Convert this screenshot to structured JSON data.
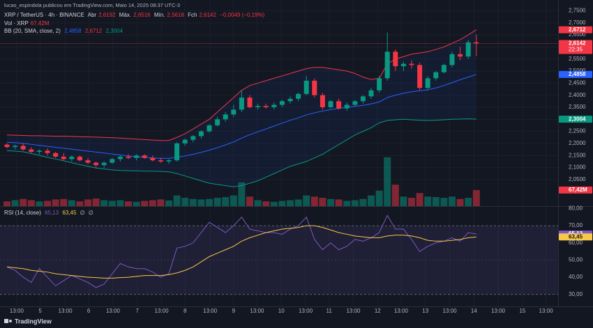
{
  "chart_data": {
    "type": "candlestick",
    "attribution": "lucas_espindola publicou em TradingView.com, Maio 14, 2025 08:37 UTC-3",
    "title": "XRP / TetherUS · 4h · BINANCE",
    "legend": {
      "open_name": "Abr",
      "open": "2,6192",
      "high_name": "Máx.",
      "high": "2,6516",
      "low_name": "Mín.",
      "low": "2,5618",
      "close_name": "Fch",
      "close": "2,6142",
      "change": "−0,0049 (−0,19%)"
    },
    "countdown": "22:35",
    "up_color": "#089981",
    "down_color": "#f23645",
    "open": [
      2.195,
      2.185,
      2.19,
      2.175,
      2.165,
      2.17,
      2.16,
      2.145,
      2.135,
      2.145,
      2.13,
      2.12,
      2.11,
      2.12,
      2.135,
      2.145,
      2.14,
      2.15,
      2.14,
      2.13,
      2.125,
      2.13,
      2.2,
      2.215,
      2.23,
      2.25,
      2.275,
      2.3,
      2.32,
      2.34,
      2.39,
      2.35,
      2.355,
      2.35,
      2.36,
      2.375,
      2.385,
      2.405,
      2.46,
      2.4,
      2.35,
      2.375,
      2.345,
      2.36,
      2.375,
      2.395,
      2.42,
      2.47,
      2.58,
      2.52,
      2.53,
      2.525,
      2.43,
      2.47,
      2.495,
      2.525,
      2.57,
      2.56,
      2.6192
    ],
    "high": [
      2.2,
      2.195,
      2.2,
      2.185,
      2.175,
      2.18,
      2.165,
      2.16,
      2.15,
      2.15,
      2.14,
      2.125,
      2.125,
      2.14,
      2.15,
      2.155,
      2.155,
      2.155,
      2.15,
      2.14,
      2.135,
      2.205,
      2.22,
      2.235,
      2.255,
      2.28,
      2.31,
      2.33,
      2.36,
      2.42,
      2.4,
      2.365,
      2.365,
      2.37,
      2.38,
      2.395,
      2.41,
      2.48,
      2.47,
      2.41,
      2.38,
      2.385,
      2.37,
      2.38,
      2.4,
      2.43,
      2.48,
      2.66,
      2.59,
      2.54,
      2.545,
      2.535,
      2.48,
      2.5,
      2.53,
      2.58,
      2.6,
      2.63,
      2.6516
    ],
    "low": [
      2.18,
      2.175,
      2.17,
      2.16,
      2.155,
      2.15,
      2.14,
      2.13,
      2.125,
      2.125,
      2.115,
      2.1,
      2.1,
      2.115,
      2.125,
      2.135,
      2.13,
      2.135,
      2.125,
      2.12,
      2.115,
      2.125,
      2.19,
      2.205,
      2.22,
      2.245,
      2.27,
      2.29,
      2.31,
      2.33,
      2.345,
      2.34,
      2.345,
      2.34,
      2.35,
      2.365,
      2.375,
      2.4,
      2.39,
      2.34,
      2.345,
      2.34,
      2.335,
      2.355,
      2.365,
      2.385,
      2.41,
      2.46,
      2.5,
      2.5,
      2.51,
      2.42,
      2.42,
      2.46,
      2.49,
      2.515,
      2.545,
      2.55,
      2.5618
    ],
    "close": [
      2.185,
      2.19,
      2.175,
      2.165,
      2.17,
      2.16,
      2.145,
      2.135,
      2.145,
      2.13,
      2.12,
      2.11,
      2.12,
      2.135,
      2.145,
      2.14,
      2.15,
      2.14,
      2.13,
      2.125,
      2.13,
      2.2,
      2.215,
      2.23,
      2.25,
      2.275,
      2.3,
      2.32,
      2.34,
      2.39,
      2.35,
      2.355,
      2.35,
      2.36,
      2.375,
      2.385,
      2.405,
      2.46,
      2.4,
      2.35,
      2.375,
      2.345,
      2.36,
      2.375,
      2.395,
      2.42,
      2.47,
      2.58,
      2.52,
      2.53,
      2.525,
      2.43,
      2.47,
      2.495,
      2.525,
      2.57,
      2.56,
      2.6192,
      2.6142
    ],
    "ylim": [
      1.94,
      2.78
    ],
    "yticks": [
      {
        "value": 2.75,
        "label": "2,7500"
      },
      {
        "value": 2.7,
        "label": "2,7000"
      },
      {
        "value": 2.65,
        "label": "2,6500"
      },
      {
        "value": 2.6,
        "label": "2,6000"
      },
      {
        "value": 2.55,
        "label": "2,5500"
      },
      {
        "value": 2.5,
        "label": "2,5000"
      },
      {
        "value": 2.45,
        "label": "2,4500"
      },
      {
        "value": 2.4,
        "label": "2,4000"
      },
      {
        "value": 2.35,
        "label": "2,3500"
      },
      {
        "value": 2.3,
        "label": "2,3000"
      },
      {
        "value": 2.25,
        "label": "2,2500"
      },
      {
        "value": 2.2,
        "label": "2,2000"
      },
      {
        "value": 2.15,
        "label": "2,1500"
      },
      {
        "value": 2.1,
        "label": "2,1000"
      },
      {
        "value": 2.05,
        "label": "2,0500"
      }
    ],
    "xticks": [
      {
        "value": 1.2,
        "label": "13:00"
      },
      {
        "value": 4.1,
        "label": "5"
      },
      {
        "value": 7.2,
        "label": "13:00"
      },
      {
        "value": 10.1,
        "label": "6"
      },
      {
        "value": 13.1,
        "label": "13:00"
      },
      {
        "value": 16.1,
        "label": "7"
      },
      {
        "value": 19.1,
        "label": "13:00"
      },
      {
        "value": 22.0,
        "label": "8"
      },
      {
        "value": 25.1,
        "label": "13:00"
      },
      {
        "value": 28.0,
        "label": "9"
      },
      {
        "value": 30.9,
        "label": "13:00"
      },
      {
        "value": 33.9,
        "label": "10"
      },
      {
        "value": 36.9,
        "label": "13:00"
      },
      {
        "value": 39.8,
        "label": "11"
      },
      {
        "value": 42.8,
        "label": "13:00"
      },
      {
        "value": 45.8,
        "label": "12"
      },
      {
        "value": 48.7,
        "label": "13:00"
      },
      {
        "value": 51.7,
        "label": "13"
      },
      {
        "value": 54.7,
        "label": "13:00"
      },
      {
        "value": 57.7,
        "label": "14"
      },
      {
        "value": 60.7,
        "label": "13:00"
      },
      {
        "value": 63.7,
        "label": "15"
      },
      {
        "value": 66.6,
        "label": "13:00"
      }
    ],
    "volume": {
      "name": "Vol · XRP",
      "label": "67,42M",
      "ylim": [
        0,
        850
      ],
      "up_color": "rgba(8,153,129,0.5)",
      "down_color": "rgba(242,54,69,0.5)",
      "values": [
        20,
        25,
        30,
        25,
        20,
        22,
        28,
        30,
        25,
        20,
        28,
        32,
        25,
        22,
        25,
        20,
        18,
        22,
        25,
        28,
        24,
        45,
        35,
        30,
        28,
        30,
        35,
        38,
        45,
        100,
        40,
        25,
        20,
        18,
        22,
        25,
        28,
        45,
        40,
        35,
        30,
        28,
        22,
        25,
        30,
        45,
        65,
        205,
        90,
        40,
        35,
        55,
        40,
        38,
        35,
        40,
        30,
        35,
        67.42
      ]
    },
    "bollinger": {
      "name": "BB (20, SMA, close, 2)",
      "fill": "rgba(41,98,255,0.07)",
      "series": [
        {
          "color": "#2962ff",
          "label": "2,4858",
          "values": [
            2.205,
            2.203,
            2.2,
            2.196,
            2.192,
            2.188,
            2.184,
            2.18,
            2.176,
            2.172,
            2.168,
            2.164,
            2.16,
            2.156,
            2.152,
            2.148,
            2.145,
            2.142,
            2.14,
            2.138,
            2.138,
            2.142,
            2.148,
            2.155,
            2.163,
            2.172,
            2.182,
            2.194,
            2.206,
            2.222,
            2.236,
            2.248,
            2.26,
            2.272,
            2.284,
            2.296,
            2.306,
            2.318,
            2.327,
            2.334,
            2.34,
            2.345,
            2.35,
            2.354,
            2.358,
            2.364,
            2.372,
            2.39,
            2.4,
            2.408,
            2.414,
            2.418,
            2.422,
            2.43,
            2.44,
            2.452,
            2.464,
            2.475,
            2.4858
          ]
        },
        {
          "color": "#f23645",
          "label": "2,6712",
          "values": [
            2.235,
            2.234,
            2.233,
            2.232,
            2.232,
            2.231,
            2.23,
            2.23,
            2.229,
            2.228,
            2.227,
            2.226,
            2.225,
            2.224,
            2.222,
            2.22,
            2.218,
            2.216,
            2.214,
            2.212,
            2.212,
            2.225,
            2.24,
            2.26,
            2.28,
            2.3,
            2.33,
            2.36,
            2.39,
            2.42,
            2.44,
            2.45,
            2.46,
            2.47,
            2.48,
            2.49,
            2.5,
            2.51,
            2.515,
            2.515,
            2.51,
            2.505,
            2.5,
            2.49,
            2.475,
            2.465,
            2.47,
            2.53,
            2.55,
            2.56,
            2.57,
            2.575,
            2.58,
            2.59,
            2.6,
            2.615,
            2.63,
            2.65,
            2.6712
          ]
        },
        {
          "color": "#089981",
          "label": "2,3004",
          "values": [
            2.17,
            2.168,
            2.165,
            2.158,
            2.15,
            2.142,
            2.135,
            2.128,
            2.12,
            2.112,
            2.105,
            2.098,
            2.094,
            2.09,
            2.088,
            2.087,
            2.086,
            2.085,
            2.085,
            2.084,
            2.082,
            2.075,
            2.065,
            2.055,
            2.045,
            2.035,
            2.03,
            2.025,
            2.02,
            2.025,
            2.035,
            2.045,
            2.06,
            2.075,
            2.09,
            2.105,
            2.115,
            2.125,
            2.14,
            2.155,
            2.175,
            2.195,
            2.215,
            2.235,
            2.25,
            2.265,
            2.285,
            2.295,
            2.298,
            2.3,
            2.298,
            2.296,
            2.295,
            2.296,
            2.298,
            2.3,
            2.301,
            2.302,
            2.3004
          ]
        }
      ]
    },
    "rsi": {
      "name": "RSI (14, close)",
      "nulls": [
        "∅",
        "∅"
      ],
      "ylim": [
        23,
        81
      ],
      "band": [
        30,
        70
      ],
      "band_color": "rgba(126,87,194,0.12)",
      "yticks": [
        {
          "value": 80,
          "label": "80,00"
        },
        {
          "value": 70,
          "label": "70,00"
        },
        {
          "value": 60,
          "label": "60,00"
        },
        {
          "value": 50,
          "label": "50,00"
        },
        {
          "value": 40,
          "label": "40,00"
        },
        {
          "value": 30,
          "label": "30,00"
        }
      ],
      "series": [
        {
          "color": "#7e57c2",
          "label": "65,13",
          "values": [
            46,
            44,
            40,
            37,
            45,
            40,
            35,
            38,
            41,
            39,
            37,
            34,
            36,
            42,
            48,
            46,
            45,
            45,
            43,
            40,
            42,
            57,
            58,
            60,
            66,
            72,
            69,
            66,
            70,
            75,
            68,
            67,
            66,
            66,
            65,
            68,
            70,
            75,
            62,
            56,
            60,
            56,
            58,
            62,
            61,
            63,
            66,
            76,
            68,
            68,
            62,
            55,
            58,
            60,
            61,
            63,
            61,
            66,
            65.13
          ]
        },
        {
          "color": "#f7c948",
          "label": "63,45",
          "values": [
            46,
            45.5,
            45,
            44,
            43.5,
            43,
            42,
            41.5,
            41,
            40.5,
            40,
            39.8,
            39.5,
            39.5,
            39.8,
            40,
            40.5,
            41,
            41,
            41,
            41.5,
            42.5,
            44,
            46,
            49,
            52,
            54,
            56,
            58,
            61,
            63,
            64.5,
            66,
            67,
            68,
            68.5,
            69,
            70,
            70,
            69,
            67.5,
            66,
            65,
            64,
            63.5,
            63,
            63,
            64,
            64.5,
            64.5,
            64,
            63,
            61.5,
            61,
            61,
            61.5,
            62,
            63,
            63.45
          ]
        }
      ]
    },
    "footer": "TradingView"
  }
}
